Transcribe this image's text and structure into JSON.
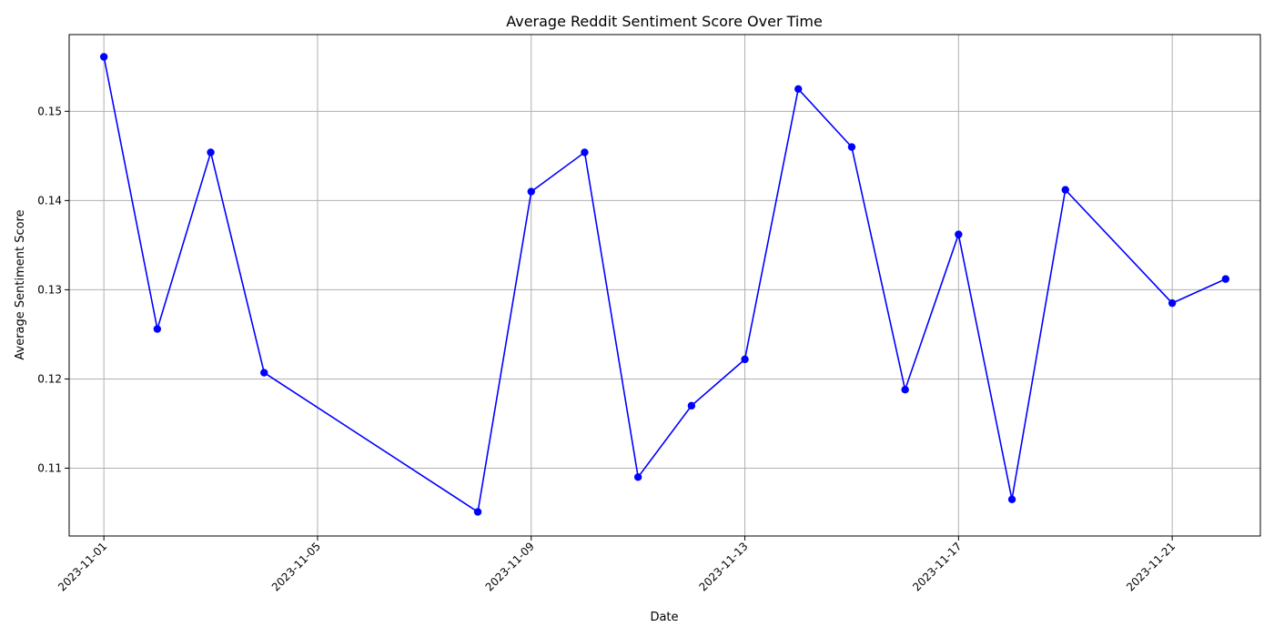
{
  "colors": {
    "series": "#0000ff",
    "grid": "#b0b0b0",
    "axes": "#000000"
  },
  "chart_data": {
    "type": "line",
    "title": "Average Reddit Sentiment Score Over Time",
    "xlabel": "Date",
    "ylabel": "Average Sentiment Score",
    "grid": true,
    "x_tick_labels": [
      "2023-11-01",
      "2023-11-05",
      "2023-11-09",
      "2023-11-13",
      "2023-11-17",
      "2023-11-21"
    ],
    "y_tick_labels": [
      "0.11",
      "0.12",
      "0.13",
      "0.14",
      "0.15"
    ],
    "ylim": [
      0.1024,
      0.1586
    ],
    "xlim": [
      "2023-10-31",
      "2023-11-23"
    ],
    "marker": "circle",
    "series": [
      {
        "x": [
          "2023-11-01",
          "2023-11-02",
          "2023-11-03",
          "2023-11-04",
          "2023-11-08",
          "2023-11-09",
          "2023-11-10",
          "2023-11-11",
          "2023-11-12",
          "2023-11-13",
          "2023-11-14",
          "2023-11-15",
          "2023-11-16",
          "2023-11-17",
          "2023-11-18",
          "2023-11-19",
          "2023-11-21",
          "2023-11-22"
        ],
        "values": [
          0.1561,
          0.1256,
          0.1454,
          0.1207,
          0.1051,
          0.141,
          0.1454,
          0.109,
          0.117,
          0.1222,
          0.1525,
          0.146,
          0.1188,
          0.1362,
          0.1065,
          0.1412,
          0.1285,
          0.1312
        ]
      }
    ]
  }
}
